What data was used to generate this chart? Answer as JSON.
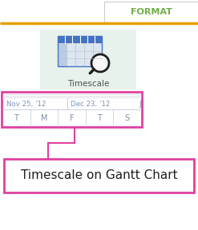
{
  "bg_color": "#ffffff",
  "format_text": "FORMAT",
  "format_text_color": "#70ad47",
  "top_divider_color": "#e8a000",
  "icon_bg_color": "#e8f2ec",
  "icon_label": "Timescale",
  "icon_label_color": "#505050",
  "gantt_box_border_color": "#e040a0",
  "gantt_bg": "#ffffff",
  "gantt_date1": "Nov 25, '12",
  "gantt_date2": "Dec 23, '12",
  "gantt_date3": "J",
  "gantt_days": [
    "T",
    "M",
    "F",
    "T",
    "S"
  ],
  "gantt_text_color": "#7b96b8",
  "gantt_day_text_color": "#8090a8",
  "connector_color": "#e040a0",
  "label_box_border_color": "#e040a0",
  "label_text": "Timescale on Gantt Chart",
  "label_text_color": "#202020",
  "label_bg": "#ffffff",
  "cal_header_color": "#4472c4",
  "cal_col1_color": "#b8cce4",
  "cal_col_color": "#dce6f1",
  "cal_border_color": "#4472c4"
}
